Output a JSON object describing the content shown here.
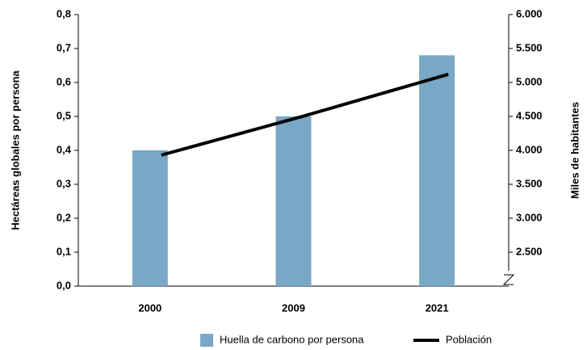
{
  "chart_data": {
    "type": "bar",
    "categories": [
      "2000",
      "2009",
      "2021"
    ],
    "ylabel": "Hectáreas globales por persona",
    "y2label": "Miles de habitantes",
    "series": [
      {
        "name": "Huella de carbono por persona",
        "type": "bar",
        "color": "#79a8c6",
        "values": [
          0.4,
          0.5,
          0.68
        ]
      },
      {
        "name": "Población",
        "type": "line",
        "color": "#000000",
        "axis": "y2",
        "values": [
          3930,
          4510,
          5120
        ]
      }
    ],
    "ylim": [
      0,
      0.8
    ],
    "yticks": [
      {
        "value": 0,
        "label": "0,0"
      },
      {
        "value": 0.1,
        "label": "0,1"
      },
      {
        "value": 0.2,
        "label": "0,2"
      },
      {
        "value": 0.3,
        "label": "0,3"
      },
      {
        "value": 0.4,
        "label": "0,4"
      },
      {
        "value": 0.5,
        "label": "0,5"
      },
      {
        "value": 0.6,
        "label": "0,6"
      },
      {
        "value": 0.7,
        "label": "0,7"
      },
      {
        "value": 0.8,
        "label": "0,8"
      }
    ],
    "y2lim": [
      2000,
      6000
    ],
    "y2ticks": [
      {
        "value": 2500,
        "label": "2.500"
      },
      {
        "value": 3000,
        "label": "3.000"
      },
      {
        "value": 3500,
        "label": "3.500"
      },
      {
        "value": 4000,
        "label": "4.000"
      },
      {
        "value": 4500,
        "label": "4.500"
      },
      {
        "value": 5000,
        "label": "5.000"
      },
      {
        "value": 5500,
        "label": "5.500"
      },
      {
        "value": 6000,
        "label": "6.000"
      }
    ]
  }
}
